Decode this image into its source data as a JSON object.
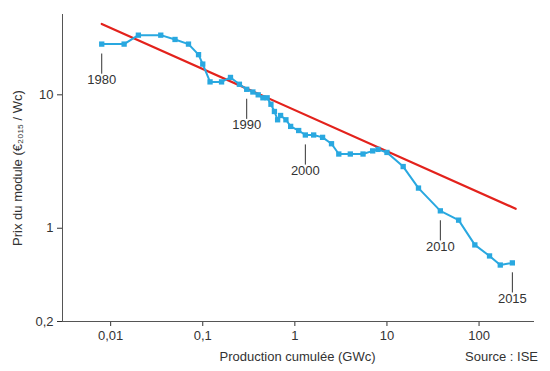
{
  "chart_data": {
    "type": "line",
    "log": true,
    "x_label": "Production cumulée (GWc)",
    "y_label": "Prix du module (€₂₀₁₅ / Wc)",
    "source": "Source : ISE",
    "xlim": [
      0.003,
      400
    ],
    "ylim": [
      0.2,
      40
    ],
    "xticks": [
      {
        "value": 0.01,
        "label": "0,01"
      },
      {
        "value": 0.1,
        "label": "0,1"
      },
      1,
      10,
      100
    ],
    "yticks": [
      {
        "value": 0.2,
        "label": "0,2"
      },
      1,
      10
    ],
    "series": [
      {
        "color": "#29a8e0",
        "marker": "square",
        "x": [
          0.008,
          0.014,
          0.02,
          0.035,
          0.05,
          0.07,
          0.09,
          0.1,
          0.12,
          0.16,
          0.2,
          0.25,
          0.3,
          0.35,
          0.4,
          0.45,
          0.5,
          0.55,
          0.6,
          0.65,
          0.7,
          0.8,
          0.9,
          1.1,
          1.3,
          1.6,
          2.0,
          2.5,
          3.0,
          4.0,
          5.5,
          7,
          8,
          10,
          15,
          22,
          38,
          60,
          90,
          130,
          170,
          230
        ],
        "values": [
          24,
          24,
          28,
          28,
          26,
          24,
          20,
          17,
          12.5,
          12.5,
          13.5,
          12,
          11,
          10.5,
          10,
          9.5,
          9.5,
          8.5,
          7.5,
          6.5,
          7,
          6.5,
          5.8,
          5.4,
          5.0,
          5.0,
          4.8,
          4.3,
          3.6,
          3.6,
          3.6,
          3.8,
          3.9,
          3.7,
          2.9,
          2.0,
          1.35,
          1.15,
          0.75,
          0.62,
          0.53,
          0.55
        ]
      },
      {
        "color": "#e3221c",
        "x": [
          0.008,
          250
        ],
        "values": [
          34,
          1.4
        ]
      }
    ],
    "annotations": [
      {
        "text": "1980",
        "x": 0.008,
        "y": 24
      },
      {
        "text": "1990",
        "x": 0.3,
        "y": 11
      },
      {
        "text": "2000",
        "x": 1.3,
        "y": 5.0
      },
      {
        "text": "2010",
        "x": 38,
        "y": 1.35
      },
      {
        "text": "2015",
        "x": 230,
        "y": 0.55
      }
    ]
  }
}
